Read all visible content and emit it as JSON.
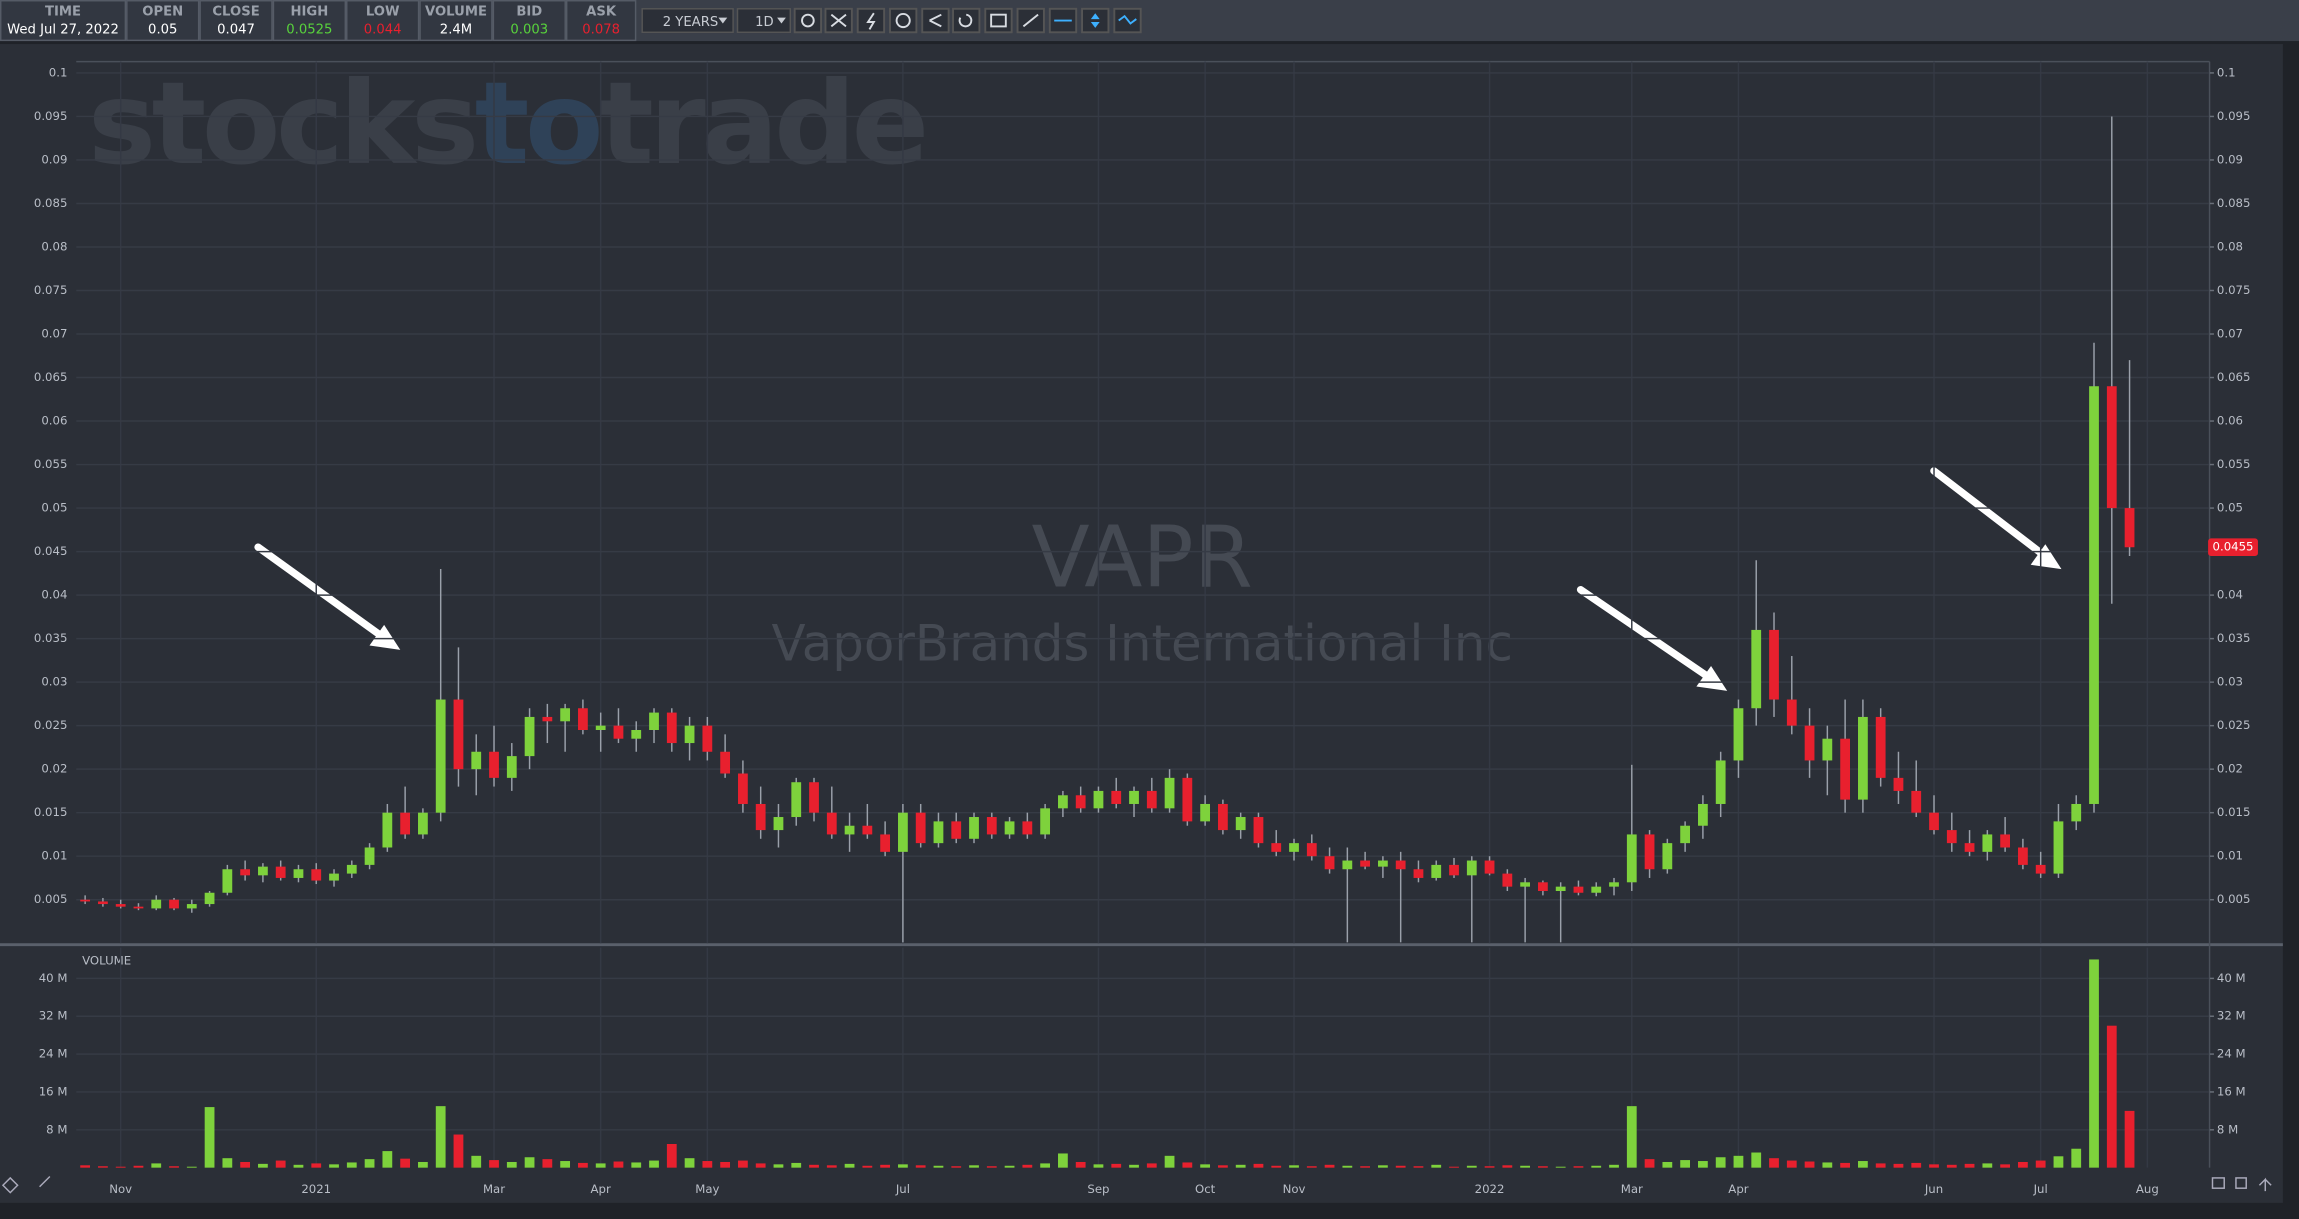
{
  "header": {
    "fields": [
      {
        "label": "TIME",
        "value": "Wed Jul 27, 2022",
        "color": "#ffffff"
      },
      {
        "label": "OPEN",
        "value": "0.05",
        "color": "#ffffff"
      },
      {
        "label": "CLOSE",
        "value": "0.047",
        "color": "#ffffff"
      },
      {
        "label": "HIGH",
        "value": "0.0525",
        "color": "#58d23c"
      },
      {
        "label": "LOW",
        "value": "0.044",
        "color": "#e8202e"
      },
      {
        "label": "VOLUME",
        "value": "2.4M",
        "color": "#ffffff"
      },
      {
        "label": "BID",
        "value": "0.003",
        "color": "#58d23c"
      },
      {
        "label": "ASK",
        "value": "0.078",
        "color": "#e8202e"
      }
    ]
  },
  "toolbar": {
    "range": "2 YEARS",
    "interval": "1D"
  },
  "watermark": {
    "brand_parts": [
      "stocks",
      "to",
      "trade"
    ],
    "symbol": "VAPR",
    "name": "VaporBrands International Inc"
  },
  "chart_data": {
    "type": "candlestick",
    "categories": [
      null,
      null,
      "Nov",
      null,
      null,
      null,
      null,
      null,
      null,
      null,
      null,
      null,
      null,
      "2021",
      null,
      null,
      null,
      null,
      null,
      null,
      null,
      null,
      null,
      "Mar",
      null,
      null,
      null,
      null,
      null,
      "Apr",
      null,
      null,
      null,
      null,
      null,
      "May",
      null,
      null,
      null,
      null,
      null,
      null,
      null,
      null,
      null,
      null,
      "Jul",
      null,
      null,
      null,
      null,
      null,
      null,
      null,
      null,
      null,
      null,
      "Sep",
      null,
      null,
      null,
      null,
      null,
      "Oct",
      null,
      null,
      null,
      null,
      "Nov",
      null,
      null,
      null,
      null,
      null,
      null,
      null,
      null,
      null,
      null,
      "2022",
      null,
      null,
      null,
      null,
      null,
      null,
      null,
      "Mar",
      null,
      null,
      null,
      null,
      null,
      "Apr",
      null,
      null,
      null,
      null,
      null,
      null,
      null,
      null,
      null,
      null,
      "Jun",
      null,
      null,
      null,
      null,
      null,
      "Jul",
      null,
      null,
      null,
      null,
      null,
      "Aug",
      null,
      null,
      null
    ],
    "open": [
      0.005,
      0.0048,
      0.0045,
      0.0042,
      0.004,
      0.005,
      0.004,
      0.0045,
      0.0058,
      0.0085,
      0.0078,
      0.0088,
      0.0075,
      0.0085,
      0.0072,
      0.008,
      0.009,
      0.011,
      0.015,
      0.0125,
      0.015,
      0.028,
      0.02,
      0.022,
      0.019,
      0.0215,
      0.026,
      0.0255,
      0.027,
      0.0245,
      0.025,
      0.0235,
      0.0245,
      0.0265,
      0.023,
      0.025,
      0.022,
      0.0195,
      0.016,
      0.013,
      0.0145,
      0.0185,
      0.015,
      0.0125,
      0.0135,
      0.0125,
      0.0105,
      0.015,
      0.0115,
      0.014,
      0.012,
      0.0145,
      0.0125,
      0.014,
      0.0125,
      0.0155,
      0.017,
      0.0155,
      0.0175,
      0.016,
      0.0175,
      0.0155,
      0.019,
      0.014,
      0.016,
      0.013,
      0.0145,
      0.0115,
      0.0105,
      0.0115,
      0.01,
      0.0085,
      0.0095,
      0.0088,
      0.0095,
      0.0085,
      0.0075,
      0.009,
      0.0078,
      0.0095,
      0.008,
      0.0065,
      0.007,
      0.006,
      0.0065,
      0.0058,
      0.0065,
      0.007,
      0.0125,
      0.0085,
      0.0115,
      0.0135,
      0.016,
      0.021,
      0.027,
      0.036,
      0.028,
      0.025,
      0.021,
      0.0235,
      0.0165,
      0.026,
      0.019,
      0.0175,
      0.015,
      0.013,
      0.0115,
      0.0105,
      0.0125,
      0.011,
      0.009,
      0.008,
      0.014,
      0.016,
      0.064,
      0.05,
      null,
      null,
      null,
      null
    ],
    "high": [
      0.0055,
      0.0052,
      0.005,
      0.0046,
      0.0055,
      0.0052,
      0.005,
      0.006,
      0.009,
      0.0095,
      0.0092,
      0.0095,
      0.009,
      0.0092,
      0.0085,
      0.0095,
      0.0115,
      0.016,
      0.018,
      0.0155,
      0.043,
      0.034,
      0.024,
      0.025,
      0.023,
      0.027,
      0.0275,
      0.0275,
      0.028,
      0.0265,
      0.027,
      0.0255,
      0.027,
      0.027,
      0.026,
      0.026,
      0.024,
      0.021,
      0.018,
      0.016,
      0.019,
      0.019,
      0.018,
      0.015,
      0.016,
      0.014,
      0.016,
      0.016,
      0.015,
      0.015,
      0.015,
      0.015,
      0.0145,
      0.015,
      0.016,
      0.0175,
      0.018,
      0.018,
      0.019,
      0.018,
      0.019,
      0.02,
      0.0195,
      0.017,
      0.0165,
      0.015,
      0.015,
      0.013,
      0.012,
      0.0125,
      0.011,
      0.011,
      0.0105,
      0.01,
      0.0105,
      0.0095,
      0.0095,
      0.0098,
      0.01,
      0.01,
      0.0085,
      0.0075,
      0.0072,
      0.007,
      0.0072,
      0.007,
      0.0075,
      0.0205,
      0.013,
      0.012,
      0.014,
      0.017,
      0.022,
      0.028,
      0.044,
      0.038,
      0.033,
      0.027,
      0.025,
      0.028,
      0.028,
      0.027,
      0.022,
      0.021,
      0.017,
      0.015,
      0.013,
      0.013,
      0.0145,
      0.012,
      0.0105,
      0.016,
      0.017,
      0.069,
      0.095,
      0.067,
      null,
      null,
      null,
      null
    ],
    "low": [
      0.0045,
      0.0042,
      0.004,
      0.0038,
      0.0038,
      0.0038,
      0.0035,
      0.0042,
      0.0055,
      0.0072,
      0.007,
      0.0072,
      0.007,
      0.0068,
      0.0065,
      0.0075,
      0.0085,
      0.0105,
      0.012,
      0.012,
      0.014,
      0.018,
      0.017,
      0.018,
      0.0175,
      0.02,
      0.023,
      0.022,
      0.024,
      0.022,
      0.023,
      0.022,
      0.023,
      0.022,
      0.021,
      0.021,
      0.019,
      0.015,
      0.012,
      0.011,
      0.0135,
      0.014,
      0.012,
      0.0105,
      0.012,
      0.01,
      0.0001,
      0.011,
      0.011,
      0.0115,
      0.0115,
      0.012,
      0.012,
      0.012,
      0.012,
      0.0145,
      0.015,
      0.015,
      0.0155,
      0.0145,
      0.015,
      0.015,
      0.0135,
      0.0135,
      0.0125,
      0.012,
      0.011,
      0.01,
      0.0095,
      0.0095,
      0.008,
      0.0001,
      0.0085,
      0.0075,
      0.0001,
      0.007,
      0.0072,
      0.0075,
      0.0001,
      0.0078,
      0.006,
      0.0001,
      0.0055,
      0.0001,
      0.0055,
      0.0054,
      0.0055,
      0.006,
      0.0075,
      0.008,
      0.0105,
      0.012,
      0.0145,
      0.019,
      0.025,
      0.026,
      0.024,
      0.019,
      0.017,
      0.015,
      0.015,
      0.018,
      0.016,
      0.0145,
      0.0125,
      0.0105,
      0.01,
      0.0095,
      0.0105,
      0.0085,
      0.0075,
      0.0075,
      0.013,
      0.015,
      0.039,
      0.0445,
      null,
      null,
      null,
      null
    ],
    "close": [
      0.0048,
      0.0045,
      0.0042,
      0.004,
      0.005,
      0.004,
      0.0045,
      0.0058,
      0.0085,
      0.0078,
      0.0088,
      0.0075,
      0.0085,
      0.0072,
      0.008,
      0.009,
      0.011,
      0.015,
      0.0125,
      0.015,
      0.028,
      0.02,
      0.022,
      0.019,
      0.0215,
      0.026,
      0.0255,
      0.027,
      0.0245,
      0.025,
      0.0235,
      0.0245,
      0.0265,
      0.023,
      0.025,
      0.022,
      0.0195,
      0.016,
      0.013,
      0.0145,
      0.0185,
      0.015,
      0.0125,
      0.0135,
      0.0125,
      0.0105,
      0.015,
      0.0115,
      0.014,
      0.012,
      0.0145,
      0.0125,
      0.014,
      0.0125,
      0.0155,
      0.017,
      0.0155,
      0.0175,
      0.016,
      0.0175,
      0.0155,
      0.019,
      0.014,
      0.016,
      0.013,
      0.0145,
      0.0115,
      0.0105,
      0.0115,
      0.01,
      0.0085,
      0.0095,
      0.0088,
      0.0095,
      0.0085,
      0.0075,
      0.009,
      0.0078,
      0.0095,
      0.008,
      0.0065,
      0.007,
      0.006,
      0.0065,
      0.0058,
      0.0065,
      0.007,
      0.0125,
      0.0085,
      0.0115,
      0.0135,
      0.016,
      0.021,
      0.027,
      0.036,
      0.028,
      0.025,
      0.021,
      0.0235,
      0.0165,
      0.026,
      0.019,
      0.0175,
      0.015,
      0.013,
      0.0115,
      0.0105,
      0.0125,
      0.011,
      0.009,
      0.008,
      0.014,
      0.016,
      0.064,
      0.05,
      0.0455,
      null,
      null,
      null,
      null
    ],
    "volume": [
      500000,
      300000,
      200000,
      400000,
      900000,
      300000,
      200000,
      12800000,
      2000000,
      1200000,
      800000,
      1500000,
      600000,
      900000,
      700000,
      1100000,
      1800000,
      3500000,
      1900000,
      1200000,
      13000000,
      7000000,
      2500000,
      1600000,
      1200000,
      2200000,
      1800000,
      1400000,
      1000000,
      900000,
      1300000,
      1100000,
      1500000,
      5000000,
      2000000,
      1400000,
      1200000,
      1500000,
      900000,
      700000,
      1000000,
      600000,
      500000,
      800000,
      400000,
      600000,
      700000,
      500000,
      400000,
      300000,
      500000,
      300000,
      400000,
      600000,
      900000,
      3000000,
      1200000,
      700000,
      800000,
      600000,
      900000,
      2500000,
      1100000,
      700000,
      500000,
      600000,
      800000,
      400000,
      500000,
      300000,
      600000,
      400000,
      300000,
      500000,
      400000,
      300000,
      600000,
      200000,
      400000,
      300000,
      500000,
      400000,
      300000,
      200000,
      300000,
      400000,
      600000,
      13000000,
      1800000,
      1200000,
      1600000,
      1400000,
      2200000,
      2500000,
      3200000,
      2000000,
      1500000,
      1300000,
      1100000,
      1000000,
      1400000,
      900000,
      800000,
      1000000,
      700000,
      600000,
      800000,
      900000,
      700000,
      1200000,
      1500000,
      2400000,
      4000000,
      44000000,
      30000000,
      12000000,
      null,
      null,
      null,
      null
    ],
    "up_color": "#7ed23c",
    "down_color": "#e8202e",
    "wick_color": "#9aa0aa",
    "ylim": [
      0,
      0.1013
    ],
    "yticks": [
      0.005,
      0.01,
      0.015,
      0.02,
      0.025,
      0.03,
      0.035,
      0.04,
      0.045,
      0.05,
      0.055,
      0.06,
      0.065,
      0.07,
      0.075,
      0.08,
      0.085,
      0.09,
      0.095,
      0.1
    ],
    "volume_label": "VOLUME",
    "volume_ylim": [
      0,
      46500000
    ],
    "volume_yticks": [
      {
        "value": 8000000,
        "label": "8 M"
      },
      {
        "value": 16000000,
        "label": "16 M"
      },
      {
        "value": 24000000,
        "label": "24 M"
      },
      {
        "value": 32000000,
        "label": "32 M"
      },
      {
        "value": 40000000,
        "label": "40 M"
      }
    ],
    "grid": true
  }
}
